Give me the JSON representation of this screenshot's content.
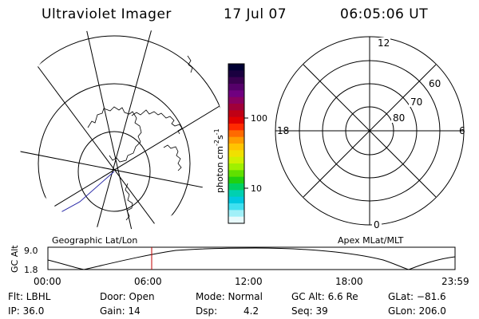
{
  "header": {
    "title": "Ultraviolet Imager",
    "date": "17 Jul 07",
    "time": "06:05:06 UT"
  },
  "left_panel": {
    "label": "Geographic Lat/Lon"
  },
  "colorbar": {
    "unit_label": "photon cm",
    "unit_exp1": "-2",
    "unit_mid": "s",
    "unit_exp2": "-1",
    "tick_100": "100",
    "tick_10": "10",
    "colors": [
      "#000033",
      "#1a0040",
      "#3a0050",
      "#55006a",
      "#700080",
      "#8a0060",
      "#a0003a",
      "#c00015",
      "#e00000",
      "#ff2a00",
      "#ff6a00",
      "#ff9c00",
      "#ffc400",
      "#f0e000",
      "#d0f000",
      "#a0f000",
      "#60e000",
      "#20d010",
      "#00d060",
      "#00d0b0",
      "#00c8e0",
      "#40e0f0",
      "#a0f0f8",
      "#e8fafc"
    ]
  },
  "right_panel": {
    "label": "Apex MLat/MLT",
    "mlt_12": "12",
    "mlt_18": "18",
    "mlt_6": "6",
    "mlt_0": "0",
    "lat_60": "60",
    "lat_70": "70",
    "lat_80": "80"
  },
  "altitude_plot": {
    "ylabel": "GC Alt",
    "y_max": "9.0",
    "y_min": "1.8",
    "x_ticks": [
      "00:00",
      "06:00",
      "12:00",
      "18:00",
      "23:59"
    ]
  },
  "info": {
    "flt": "Flt: LBHL",
    "door": "Door: Open",
    "mode": "Mode: Normal",
    "gc_alt": "GC Alt: 6.6 Re",
    "glat": "GLat: −81.6",
    "ip": "IP: 36.0",
    "gain": "Gain: 14",
    "dsp_label": "Dsp:",
    "dsp_value": "4.2",
    "seq": "Seq: 39",
    "glon": "GLon: 206.0"
  }
}
